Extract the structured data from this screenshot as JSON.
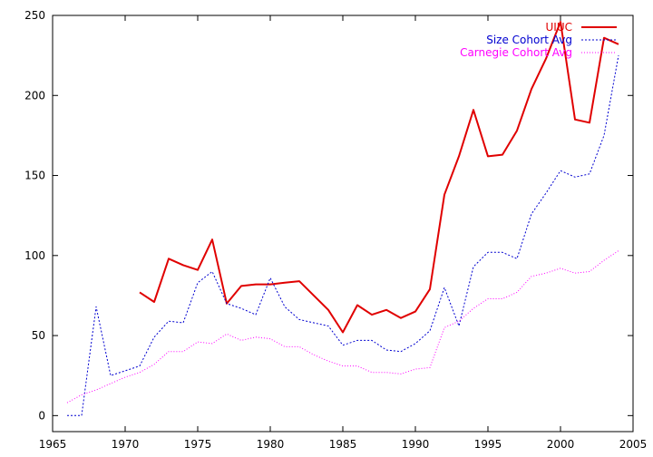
{
  "chart_data": {
    "type": "line",
    "title": "",
    "xlabel": "",
    "ylabel": "",
    "xlim": [
      1965,
      2005
    ],
    "ylim": [
      -10,
      250
    ],
    "xticks": [
      1965,
      1970,
      1975,
      1980,
      1985,
      1990,
      1995,
      2000,
      2005
    ],
    "yticks": [
      0,
      50,
      100,
      150,
      200,
      250
    ],
    "grid": false,
    "legend_position": "top-right",
    "series": [
      {
        "name": "UIUC",
        "color": "#e00000",
        "style": "solid",
        "x": [
          1971,
          1972,
          1973,
          1974,
          1975,
          1976,
          1977,
          1978,
          1979,
          1980,
          1981,
          1982,
          1983,
          1984,
          1985,
          1986,
          1987,
          1988,
          1989,
          1990,
          1991,
          1992,
          1993,
          1994,
          1995,
          1996,
          1997,
          1998,
          1999,
          2000,
          2001,
          2002,
          2003,
          2004
        ],
        "y": [
          77,
          71,
          98,
          94,
          91,
          110,
          70,
          81,
          82,
          82,
          83,
          84,
          75,
          66,
          52,
          69,
          63,
          66,
          61,
          65,
          79,
          138,
          162,
          191,
          162,
          163,
          178,
          204,
          223,
          246,
          185,
          183,
          236,
          232
        ]
      },
      {
        "name": "Size Cohort Avg",
        "color": "#0000d0",
        "style": "dashed",
        "x": [
          1966,
          1967,
          1968,
          1969,
          1970,
          1971,
          1972,
          1973,
          1974,
          1975,
          1976,
          1977,
          1978,
          1979,
          1980,
          1981,
          1982,
          1983,
          1984,
          1985,
          1986,
          1987,
          1988,
          1989,
          1990,
          1991,
          1992,
          1993,
          1994,
          1995,
          1996,
          1997,
          1998,
          1999,
          2000,
          2001,
          2002,
          2003,
          2004
        ],
        "y": [
          0,
          0,
          68,
          25,
          28,
          31,
          49,
          59,
          58,
          83,
          90,
          70,
          67,
          63,
          86,
          68,
          60,
          58,
          56,
          44,
          47,
          47,
          41,
          40,
          45,
          53,
          80,
          56,
          93,
          102,
          102,
          98,
          126,
          139,
          153,
          149,
          151,
          175,
          225
        ]
      },
      {
        "name": "Carnegie Cohort Avg",
        "color": "#ff00ff",
        "style": "dotted",
        "x": [
          1966,
          1967,
          1968,
          1969,
          1970,
          1971,
          1972,
          1973,
          1974,
          1975,
          1976,
          1977,
          1978,
          1979,
          1980,
          1981,
          1982,
          1983,
          1984,
          1985,
          1986,
          1987,
          1988,
          1989,
          1990,
          1991,
          1992,
          1993,
          1994,
          1995,
          1996,
          1997,
          1998,
          1999,
          2000,
          2001,
          2002,
          2003,
          2004
        ],
        "y": [
          8,
          13,
          16,
          20,
          24,
          27,
          32,
          40,
          40,
          46,
          45,
          51,
          47,
          49,
          48,
          43,
          43,
          38,
          34,
          31,
          31,
          27,
          27,
          26,
          29,
          30,
          55,
          59,
          67,
          73,
          73,
          77,
          87,
          89,
          92,
          89,
          90,
          97,
          103
        ]
      }
    ]
  }
}
